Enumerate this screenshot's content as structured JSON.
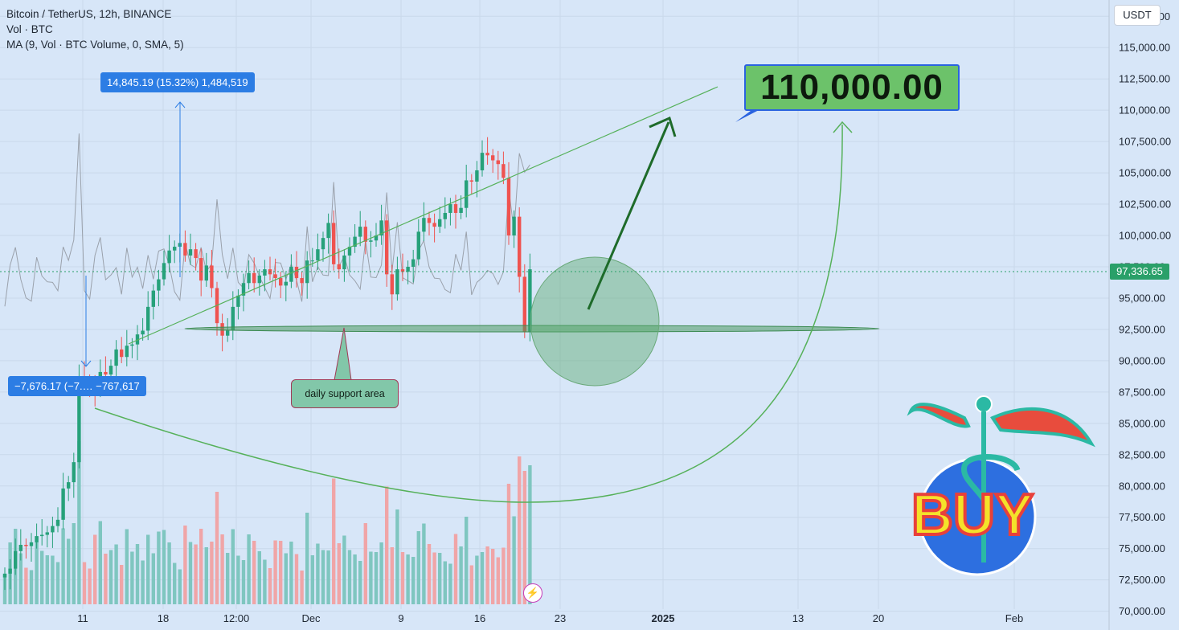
{
  "header": {
    "title": "Bitcoin / TetherUS, 12h, BINANCE",
    "vol": "Vol · BTC",
    "ma": "MA (9, Vol · BTC Volume, 0, SMA, 5)"
  },
  "currency_label": "USDT",
  "current_price_label": "97,336.65",
  "annotations": {
    "measure_up": "14,845.19 (15.32%) 1,484,519",
    "measure_down": "−7,676.17 (−7.… −767,617",
    "target": "110,000.00",
    "support": "daily support area",
    "buy_sticker": "BUY"
  },
  "icons": {
    "pane": "flash-icon",
    "sticker": "caduceus-globe-icon"
  },
  "colors": {
    "up": "#26a17a",
    "down": "#ef5350",
    "vol_up": "#7fc6c0",
    "vol_down": "#f0a5a7",
    "drawing_green": "#56b15a",
    "measure_blue": "#2c7de4",
    "background": "#d7e6f8"
  },
  "chart_data": {
    "type": "candlestick",
    "ylim": [
      68500,
      118800
    ],
    "y_ticks": [
      "117,500.00",
      "115,000.00",
      "112,500.00",
      "110,000.00",
      "107,500.00",
      "105,000.00",
      "102,500.00",
      "100,000.00",
      "97,500.00",
      "95,000.00",
      "92,500.00",
      "90,000.00",
      "87,500.00",
      "85,000.00",
      "82,500.00",
      "80,000.00",
      "77,500.00",
      "75,000.00",
      "72,500.00",
      "70,000.00"
    ],
    "x_ticks": [
      "11",
      "18",
      "12:00",
      "Dec",
      "9",
      "16",
      "23",
      "2025",
      "13",
      "20",
      "Feb"
    ],
    "closes": [
      73000,
      73400,
      74800,
      75300,
      75200,
      75500,
      76000,
      76100,
      76300,
      76800,
      77300,
      79800,
      80300,
      81900,
      88700,
      88400,
      88100,
      87600,
      89100,
      88900,
      89600,
      90900,
      90300,
      91200,
      91300,
      92100,
      92400,
      94300,
      95600,
      96500,
      97800,
      98800,
      99100,
      99400,
      98400,
      98900,
      98200,
      96400,
      97600,
      95800,
      93000,
      92000,
      92400,
      94300,
      95200,
      96200,
      97000,
      96200,
      96800,
      97300,
      96900,
      96600,
      96000,
      96300,
      97500,
      96600,
      96200,
      98000,
      98000,
      98900,
      99800,
      101000,
      97700,
      97300,
      98400,
      99100,
      99900,
      100700,
      99500,
      99600,
      100000,
      101200,
      96900,
      95300,
      97300,
      97100,
      97500,
      98100,
      100300,
      101400,
      101000,
      100700,
      101300,
      101800,
      102500,
      101800,
      102200,
      104400,
      104300,
      105200,
      106600,
      106400,
      106000,
      105700,
      104600,
      100000,
      101500,
      96700,
      92300,
      97300
    ]
  }
}
